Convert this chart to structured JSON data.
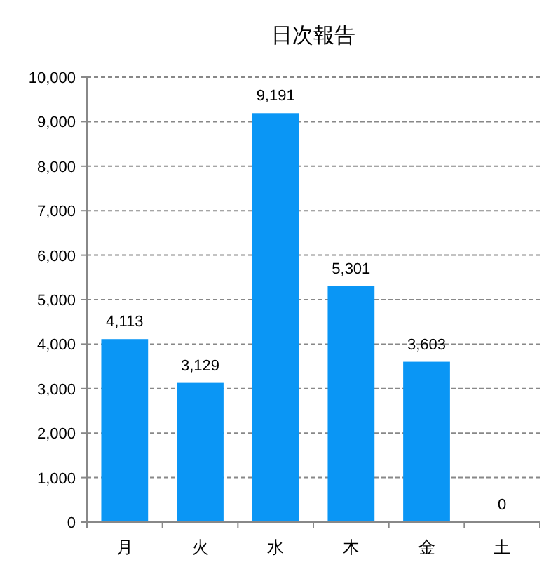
{
  "chart_data": {
    "type": "bar",
    "title": "日次報告",
    "categories": [
      "月",
      "火",
      "水",
      "木",
      "金",
      "土"
    ],
    "values": [
      4113,
      3129,
      9191,
      5301,
      3603,
      0
    ],
    "color": "#0a96f5",
    "ylim": [
      0,
      10000
    ],
    "yticks": [
      {
        "value": 0,
        "label": "0"
      },
      {
        "value": 1000,
        "label": "1,000"
      },
      {
        "value": 2000,
        "label": "2,000"
      },
      {
        "value": 3000,
        "label": "3,000"
      },
      {
        "value": 4000,
        "label": "4,000"
      },
      {
        "value": 5000,
        "label": "5,000"
      },
      {
        "value": 6000,
        "label": "6,000"
      },
      {
        "value": 7000,
        "label": "7,000"
      },
      {
        "value": 8000,
        "label": "8,000"
      },
      {
        "value": 9000,
        "label": "9,000"
      },
      {
        "value": 10000,
        "label": "10,000"
      }
    ],
    "value_labels": [
      "4,113",
      "3,129",
      "9,191",
      "5,301",
      "3,603",
      "0"
    ],
    "grid": "y"
  }
}
